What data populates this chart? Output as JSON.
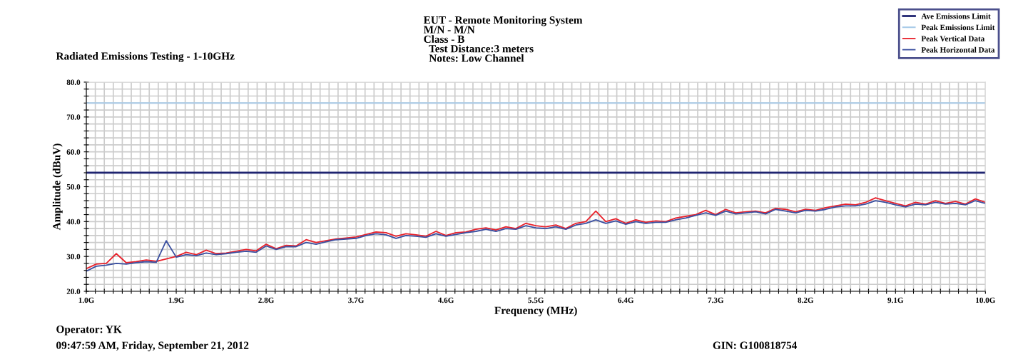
{
  "chart_data": {
    "type": "line",
    "title": "Radiated Emissions Testing - 1-10GHz",
    "subtitle": "EUT - Remote Monitoring System\nM/N - M/N\nClass - B\n  Test Distance:3 meters\n  Notes: Low Channel",
    "xlabel": "Frequency (MHz)",
    "ylabel": "Amplitude (dBuV)",
    "x": [
      1.0,
      1.1,
      1.2,
      1.3,
      1.4,
      1.5,
      1.6,
      1.7,
      1.8,
      1.9,
      2.0,
      2.1,
      2.2,
      2.3,
      2.4,
      2.5,
      2.6,
      2.7,
      2.8,
      2.9,
      3.0,
      3.1,
      3.2,
      3.3,
      3.4,
      3.5,
      3.6,
      3.7,
      3.8,
      3.9,
      4.0,
      4.1,
      4.2,
      4.3,
      4.4,
      4.5,
      4.6,
      4.7,
      4.8,
      4.9,
      5.0,
      5.1,
      5.2,
      5.3,
      5.4,
      5.5,
      5.6,
      5.7,
      5.8,
      5.9,
      6.0,
      6.1,
      6.2,
      6.3,
      6.4,
      6.5,
      6.6,
      6.7,
      6.8,
      6.9,
      7.0,
      7.1,
      7.2,
      7.3,
      7.4,
      7.5,
      7.6,
      7.7,
      7.8,
      7.9,
      8.0,
      8.1,
      8.2,
      8.3,
      8.4,
      8.5,
      8.6,
      8.7,
      8.8,
      8.9,
      9.0,
      9.1,
      9.2,
      9.3,
      9.4,
      9.5,
      9.6,
      9.7,
      9.8,
      9.9,
      10.0
    ],
    "series": [
      {
        "name": "Peak Vertical Data",
        "color": "#e8212b",
        "values": [
          26.5,
          27.8,
          28.0,
          30.8,
          28.2,
          28.5,
          29.0,
          28.6,
          29.3,
          30.0,
          31.2,
          30.5,
          31.8,
          30.8,
          31.0,
          31.5,
          32.0,
          31.6,
          33.5,
          32.2,
          33.2,
          33.0,
          34.8,
          34.0,
          34.5,
          35.0,
          35.3,
          35.6,
          36.3,
          37.0,
          36.8,
          35.8,
          36.5,
          36.2,
          35.8,
          37.2,
          36.0,
          36.8,
          37.0,
          37.8,
          38.2,
          37.6,
          38.5,
          38.0,
          39.5,
          38.8,
          38.5,
          39.0,
          38.0,
          39.5,
          40.0,
          43.0,
          40.0,
          40.8,
          39.5,
          40.5,
          39.8,
          40.2,
          40.0,
          41.0,
          41.5,
          42.0,
          43.2,
          42.0,
          43.5,
          42.5,
          42.8,
          43.0,
          42.5,
          43.8,
          43.5,
          42.8,
          43.5,
          43.2,
          44.0,
          44.5,
          45.0,
          44.8,
          45.5,
          46.8,
          46.0,
          45.2,
          44.5,
          45.5,
          45.0,
          46.0,
          45.2,
          45.8,
          45.0,
          46.5,
          45.5
        ]
      },
      {
        "name": "Peak Horizontal Data",
        "color": "#3a4fa0",
        "values": [
          25.8,
          27.2,
          27.5,
          28.0,
          27.8,
          28.2,
          28.5,
          28.3,
          34.5,
          29.8,
          30.5,
          30.2,
          31.0,
          30.5,
          30.8,
          31.2,
          31.5,
          31.2,
          33.0,
          32.0,
          32.8,
          32.8,
          34.0,
          33.5,
          34.2,
          34.8,
          35.0,
          35.2,
          36.0,
          36.5,
          36.2,
          35.2,
          36.0,
          35.8,
          35.5,
          36.5,
          35.8,
          36.3,
          36.8,
          37.2,
          37.8,
          37.2,
          38.0,
          37.8,
          38.8,
          38.2,
          38.0,
          38.5,
          37.8,
          39.0,
          39.5,
          40.5,
          39.5,
          40.2,
          39.2,
          40.0,
          39.5,
          39.8,
          39.8,
          40.5,
          41.0,
          41.8,
          42.5,
          41.8,
          43.0,
          42.2,
          42.5,
          42.8,
          42.2,
          43.5,
          43.0,
          42.5,
          43.2,
          43.0,
          43.5,
          44.2,
          44.5,
          44.5,
          45.0,
          46.0,
          45.5,
          44.8,
          44.2,
          45.0,
          44.8,
          45.5,
          45.0,
          45.2,
          44.8,
          46.0,
          45.2
        ]
      }
    ],
    "xlim": [
      1.0,
      10.0
    ],
    "xticks": [
      {
        "value": 1.0,
        "label": "1.0G"
      },
      {
        "value": 1.09,
        "label": null
      },
      {
        "value": 1.18,
        "label": null
      },
      {
        "value": 1.27,
        "label": null
      },
      {
        "value": 1.36,
        "label": null
      },
      {
        "value": 1.45,
        "label": null
      },
      {
        "value": 1.54,
        "label": null
      },
      {
        "value": 1.63,
        "label": null
      },
      {
        "value": 1.72,
        "label": null
      },
      {
        "value": 1.81,
        "label": null
      },
      {
        "value": 1.9,
        "label": "1.9G"
      },
      {
        "value": 1.99,
        "label": null
      },
      {
        "value": 2.08,
        "label": null
      },
      {
        "value": 2.17,
        "label": null
      },
      {
        "value": 2.26,
        "label": null
      },
      {
        "value": 2.35,
        "label": null
      },
      {
        "value": 2.44,
        "label": null
      },
      {
        "value": 2.53,
        "label": null
      },
      {
        "value": 2.62,
        "label": null
      },
      {
        "value": 2.71,
        "label": null
      },
      {
        "value": 2.8,
        "label": "2.8G"
      },
      {
        "value": 2.89,
        "label": null
      },
      {
        "value": 2.98,
        "label": null
      },
      {
        "value": 3.07,
        "label": null
      },
      {
        "value": 3.16,
        "label": null
      },
      {
        "value": 3.25,
        "label": null
      },
      {
        "value": 3.34,
        "label": null
      },
      {
        "value": 3.43,
        "label": null
      },
      {
        "value": 3.52,
        "label": null
      },
      {
        "value": 3.61,
        "label": null
      },
      {
        "value": 3.7,
        "label": "3.7G"
      },
      {
        "value": 3.79,
        "label": null
      },
      {
        "value": 3.88,
        "label": null
      },
      {
        "value": 3.97,
        "label": null
      },
      {
        "value": 4.06,
        "label": null
      },
      {
        "value": 4.15,
        "label": null
      },
      {
        "value": 4.24,
        "label": null
      },
      {
        "value": 4.33,
        "label": null
      },
      {
        "value": 4.42,
        "label": null
      },
      {
        "value": 4.51,
        "label": null
      },
      {
        "value": 4.6,
        "label": "4.6G"
      },
      {
        "value": 4.69,
        "label": null
      },
      {
        "value": 4.78,
        "label": null
      },
      {
        "value": 4.87,
        "label": null
      },
      {
        "value": 4.96,
        "label": null
      },
      {
        "value": 5.05,
        "label": null
      },
      {
        "value": 5.14,
        "label": null
      },
      {
        "value": 5.23,
        "label": null
      },
      {
        "value": 5.32,
        "label": null
      },
      {
        "value": 5.41,
        "label": null
      },
      {
        "value": 5.5,
        "label": "5.5G"
      },
      {
        "value": 5.59,
        "label": null
      },
      {
        "value": 5.68,
        "label": null
      },
      {
        "value": 5.77,
        "label": null
      },
      {
        "value": 5.86,
        "label": null
      },
      {
        "value": 5.95,
        "label": null
      },
      {
        "value": 6.04,
        "label": null
      },
      {
        "value": 6.13,
        "label": null
      },
      {
        "value": 6.22,
        "label": null
      },
      {
        "value": 6.31,
        "label": null
      },
      {
        "value": 6.4,
        "label": "6.4G"
      },
      {
        "value": 6.49,
        "label": null
      },
      {
        "value": 6.58,
        "label": null
      },
      {
        "value": 6.67,
        "label": null
      },
      {
        "value": 6.76,
        "label": null
      },
      {
        "value": 6.85,
        "label": null
      },
      {
        "value": 6.94,
        "label": null
      },
      {
        "value": 7.03,
        "label": null
      },
      {
        "value": 7.12,
        "label": null
      },
      {
        "value": 7.21,
        "label": null
      },
      {
        "value": 7.3,
        "label": "7.3G"
      },
      {
        "value": 7.39,
        "label": null
      },
      {
        "value": 7.48,
        "label": null
      },
      {
        "value": 7.57,
        "label": null
      },
      {
        "value": 7.66,
        "label": null
      },
      {
        "value": 7.75,
        "label": null
      },
      {
        "value": 7.84,
        "label": null
      },
      {
        "value": 7.93,
        "label": null
      },
      {
        "value": 8.02,
        "label": null
      },
      {
        "value": 8.11,
        "label": null
      },
      {
        "value": 8.2,
        "label": "8.2G"
      },
      {
        "value": 8.29,
        "label": null
      },
      {
        "value": 8.38,
        "label": null
      },
      {
        "value": 8.47,
        "label": null
      },
      {
        "value": 8.56,
        "label": null
      },
      {
        "value": 8.65,
        "label": null
      },
      {
        "value": 8.74,
        "label": null
      },
      {
        "value": 8.83,
        "label": null
      },
      {
        "value": 8.92,
        "label": null
      },
      {
        "value": 9.01,
        "label": null
      },
      {
        "value": 9.1,
        "label": "9.1G"
      },
      {
        "value": 9.19,
        "label": null
      },
      {
        "value": 9.28,
        "label": null
      },
      {
        "value": 9.37,
        "label": null
      },
      {
        "value": 9.46,
        "label": null
      },
      {
        "value": 9.55,
        "label": null
      },
      {
        "value": 9.64,
        "label": null
      },
      {
        "value": 9.73,
        "label": null
      },
      {
        "value": 9.82,
        "label": null
      },
      {
        "value": 9.91,
        "label": null
      },
      {
        "value": 10.0,
        "label": "10.0G"
      }
    ],
    "ylim": [
      20,
      80
    ],
    "yticks": [
      {
        "value": 20,
        "label": "20.0"
      },
      {
        "value": 22,
        "label": null
      },
      {
        "value": 24,
        "label": null
      },
      {
        "value": 26,
        "label": null
      },
      {
        "value": 28,
        "label": null
      },
      {
        "value": 30,
        "label": "30.0"
      },
      {
        "value": 32,
        "label": null
      },
      {
        "value": 34,
        "label": null
      },
      {
        "value": 36,
        "label": null
      },
      {
        "value": 38,
        "label": null
      },
      {
        "value": 40,
        "label": "40.0"
      },
      {
        "value": 42,
        "label": null
      },
      {
        "value": 44,
        "label": null
      },
      {
        "value": 46,
        "label": null
      },
      {
        "value": 48,
        "label": null
      },
      {
        "value": 50,
        "label": "50.0"
      },
      {
        "value": 52,
        "label": null
      },
      {
        "value": 54,
        "label": null
      },
      {
        "value": 56,
        "label": null
      },
      {
        "value": 58,
        "label": null
      },
      {
        "value": 60,
        "label": "60.0"
      },
      {
        "value": 62,
        "label": null
      },
      {
        "value": 64,
        "label": null
      },
      {
        "value": 66,
        "label": null
      },
      {
        "value": 68,
        "label": null
      },
      {
        "value": 70,
        "label": "70.0"
      },
      {
        "value": 72,
        "label": null
      },
      {
        "value": 74,
        "label": null
      },
      {
        "value": 76,
        "label": null
      },
      {
        "value": 78,
        "label": null
      },
      {
        "value": 80,
        "label": "80.0"
      }
    ],
    "ref_lines": [
      {
        "axis": "y",
        "value": 54,
        "label": "Ave Emissions Limit",
        "color": "#1f2470"
      },
      {
        "axis": "y",
        "value": 74,
        "label": "Peak Emissions Limit",
        "color": "#a9cbe9"
      }
    ],
    "grid": true,
    "legend": "top right",
    "marker": "none",
    "line_style": "solid",
    "annotations": [
      "Operator: YK",
      "09:47:59 AM, Friday, September 21, 2012",
      "GIN: G100818754"
    ]
  }
}
